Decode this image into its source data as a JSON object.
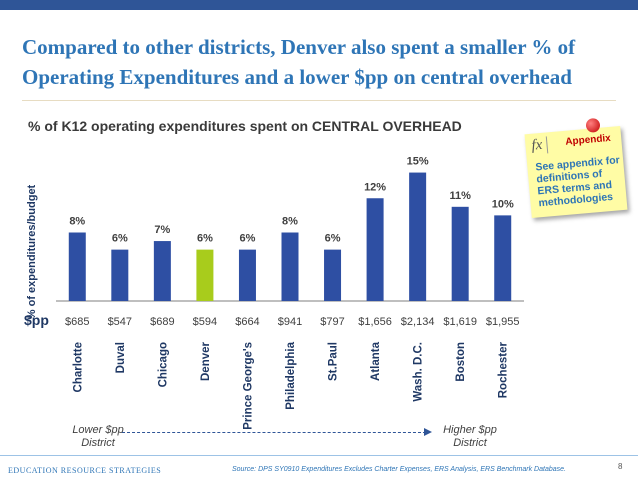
{
  "title": "Compared to other districts, Denver also spent a smaller % of Operating Expenditures and a lower $pp on central overhead",
  "subtitle": "% of K12 operating expenditures spent on  CENTRAL OVERHEAD",
  "ylabel": "% of expenditures/budget",
  "pp_label": "$pp",
  "note": {
    "icon": "fx",
    "heading": "Appendix",
    "text": "See appendix for definitions of ERS terms and methodologies"
  },
  "arrow": {
    "lower_label": "Lower $pp District",
    "higher_label": "Higher $pp District"
  },
  "footer": {
    "brand": "Education Resource Strategies",
    "source": "Source:   DPS SY0910 Expenditures Excludes Charter Expenses, ERS Analysis, ERS Benchmark Database.",
    "page": "8"
  },
  "colors": {
    "bar": "#2e4fa3",
    "highlight": "#a8cc1c",
    "title": "#2e75b6"
  },
  "chart_data": {
    "type": "bar",
    "title": "% of K12 operating expenditures spent on  CENTRAL OVERHEAD",
    "ylabel": "% of expenditures/budget",
    "ylim": [
      0,
      16
    ],
    "categories": [
      "Charlotte",
      "Duval",
      "Chicago",
      "Denver",
      "Prince George's",
      "Philadelphia",
      "St.Paul",
      "Atlanta",
      "Wash. D.C.",
      "Boston",
      "Rochester"
    ],
    "values": [
      8,
      6,
      7,
      6,
      6,
      8,
      6,
      12,
      15,
      11,
      10
    ],
    "value_labels": [
      "8%",
      "6%",
      "7%",
      "6%",
      "6%",
      "8%",
      "6%",
      "12%",
      "15%",
      "11%",
      "10%"
    ],
    "per_pupil": [
      "$685",
      "$547",
      "$689",
      "$594",
      "$664",
      "$941",
      "$797",
      "$1,656",
      "$2,134",
      "$1,619",
      "$1,955"
    ],
    "highlight_category": "Denver",
    "grid": false,
    "legend": "none"
  }
}
